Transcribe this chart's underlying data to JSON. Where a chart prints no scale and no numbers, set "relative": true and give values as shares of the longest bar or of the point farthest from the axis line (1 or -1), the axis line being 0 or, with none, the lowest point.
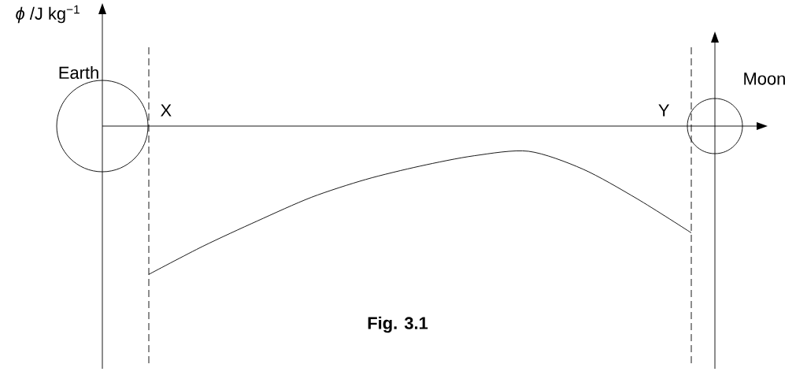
{
  "chart_data": {
    "type": "line",
    "relative": true,
    "categories": [
      null,
      null,
      null,
      null,
      null,
      null,
      null,
      null,
      null,
      null,
      null
    ],
    "values": [
      -1,
      -0.81,
      -0.64,
      -0.48,
      -0.36,
      -0.27,
      -0.2,
      -0.17,
      -0.29,
      -0.49,
      -0.72
    ],
    "color": "#000000",
    "annotations": [
      "*ϕ* /J kg$^{−1}$",
      "Earth",
      "X",
      "Y",
      "Moon",
      "Fig. 3.1"
    ]
  }
}
